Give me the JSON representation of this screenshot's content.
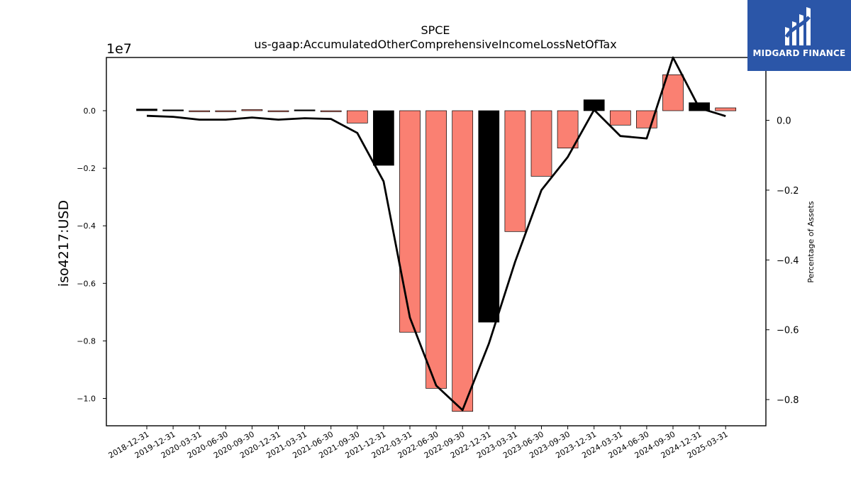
{
  "brand": {
    "name": "MIDGARD FINANCE",
    "bg_color": "#2b56a8",
    "icon": "midgard-logo-icon"
  },
  "chart_data": {
    "type": "bar",
    "title": "SPCE",
    "subtitle": "us-gaap:AccumulatedOtherComprehensiveIncomeLossNetOfTax",
    "ylabel": "iso4217:USD",
    "y2label": "Percentage of Assets",
    "y_offset_label": "1e7",
    "categories": [
      "2018-12-31",
      "2019-12-31",
      "2020-03-31",
      "2020-06-30",
      "2020-09-30",
      "2020-12-31",
      "2021-03-31",
      "2021-06-30",
      "2021-09-30",
      "2021-12-31",
      "2022-03-31",
      "2022-06-30",
      "2022-09-30",
      "2022-12-31",
      "2023-03-31",
      "2023-06-30",
      "2023-09-30",
      "2023-12-31",
      "2024-03-31",
      "2024-06-30",
      "2024-09-30",
      "2024-12-31",
      "2025-03-31"
    ],
    "values": [
      60000,
      30000,
      -20000,
      -20000,
      40000,
      -20000,
      30000,
      -15000,
      -430000,
      -1900000,
      -7700000,
      -9650000,
      -10450000,
      -7350000,
      -4200000,
      -2280000,
      -1300000,
      380000,
      -500000,
      -600000,
      1250000,
      280000,
      100000
    ],
    "bar_colors": [
      "#000000",
      "#000000",
      "#fa8072",
      "#fa8072",
      "#fa8072",
      "#fa8072",
      "#000000",
      "#fa8072",
      "#fa8072",
      "#000000",
      "#fa8072",
      "#fa8072",
      "#fa8072",
      "#000000",
      "#fa8072",
      "#fa8072",
      "#fa8072",
      "#000000",
      "#fa8072",
      "#fa8072",
      "#fa8072",
      "#000000",
      "#fa8072"
    ],
    "line_series": {
      "name": "",
      "axis": "right",
      "values": [
        0.013,
        0.01,
        0.002,
        0.002,
        0.008,
        0.002,
        0.006,
        0.004,
        -0.036,
        -0.175,
        -0.565,
        -0.76,
        -0.83,
        -0.64,
        -0.405,
        -0.2,
        -0.105,
        0.03,
        -0.045,
        -0.052,
        0.18,
        0.035,
        0.012
      ]
    },
    "ylim": [
      -10950000,
      1850000
    ],
    "y2lim": [
      -0.875,
      0.18
    ],
    "yticks": [
      0.0,
      -0.2,
      -0.4,
      -0.6,
      -0.8,
      -1.0
    ],
    "yticks_scale": 10000000,
    "y2ticks": [
      0.0,
      -0.2,
      -0.4,
      -0.6,
      -0.8
    ],
    "grid": false,
    "colors": {
      "neg_bar": "#fa8072",
      "pos_bar": "#000000",
      "line": "#000000"
    }
  }
}
